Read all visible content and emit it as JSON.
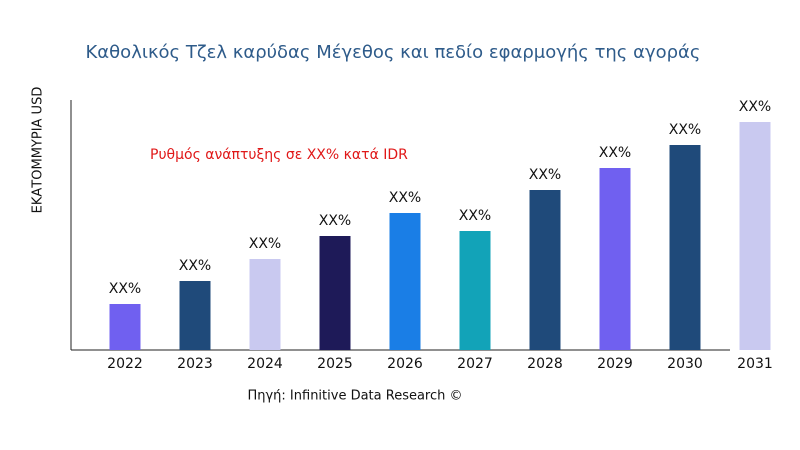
{
  "chart_data": {
    "type": "bar",
    "title": "Καθολικός Τζελ καρύδας Μέγεθος και πεδίο εφαρμογής της αγοράς",
    "y_label": "ΕΚΑΤΟΜΜΥΡΙΑ USD",
    "annotation": "Ρυθμός ανάπτυξης σε XX% κατά IDR",
    "source": "Πηγή: Infinitive Data Research ©",
    "categories": [
      "2022",
      "2023",
      "2024",
      "2025",
      "2026",
      "2027",
      "2028",
      "2029",
      "2030",
      "2031"
    ],
    "values": [
      46,
      69,
      91,
      114,
      137,
      119,
      160,
      182,
      205,
      228
    ],
    "value_labels": [
      "XX%",
      "XX%",
      "XX%",
      "XX%",
      "XX%",
      "XX%",
      "XX%",
      "XX%",
      "XX%",
      "XX%"
    ],
    "colors": [
      "#7060f0",
      "#1f4a7a",
      "#c9c9f0",
      "#1e1a58",
      "#1a7ee6",
      "#12a3b8",
      "#1f4a7a",
      "#7060f0",
      "#1f4a7a",
      "#c9c9f0"
    ]
  }
}
